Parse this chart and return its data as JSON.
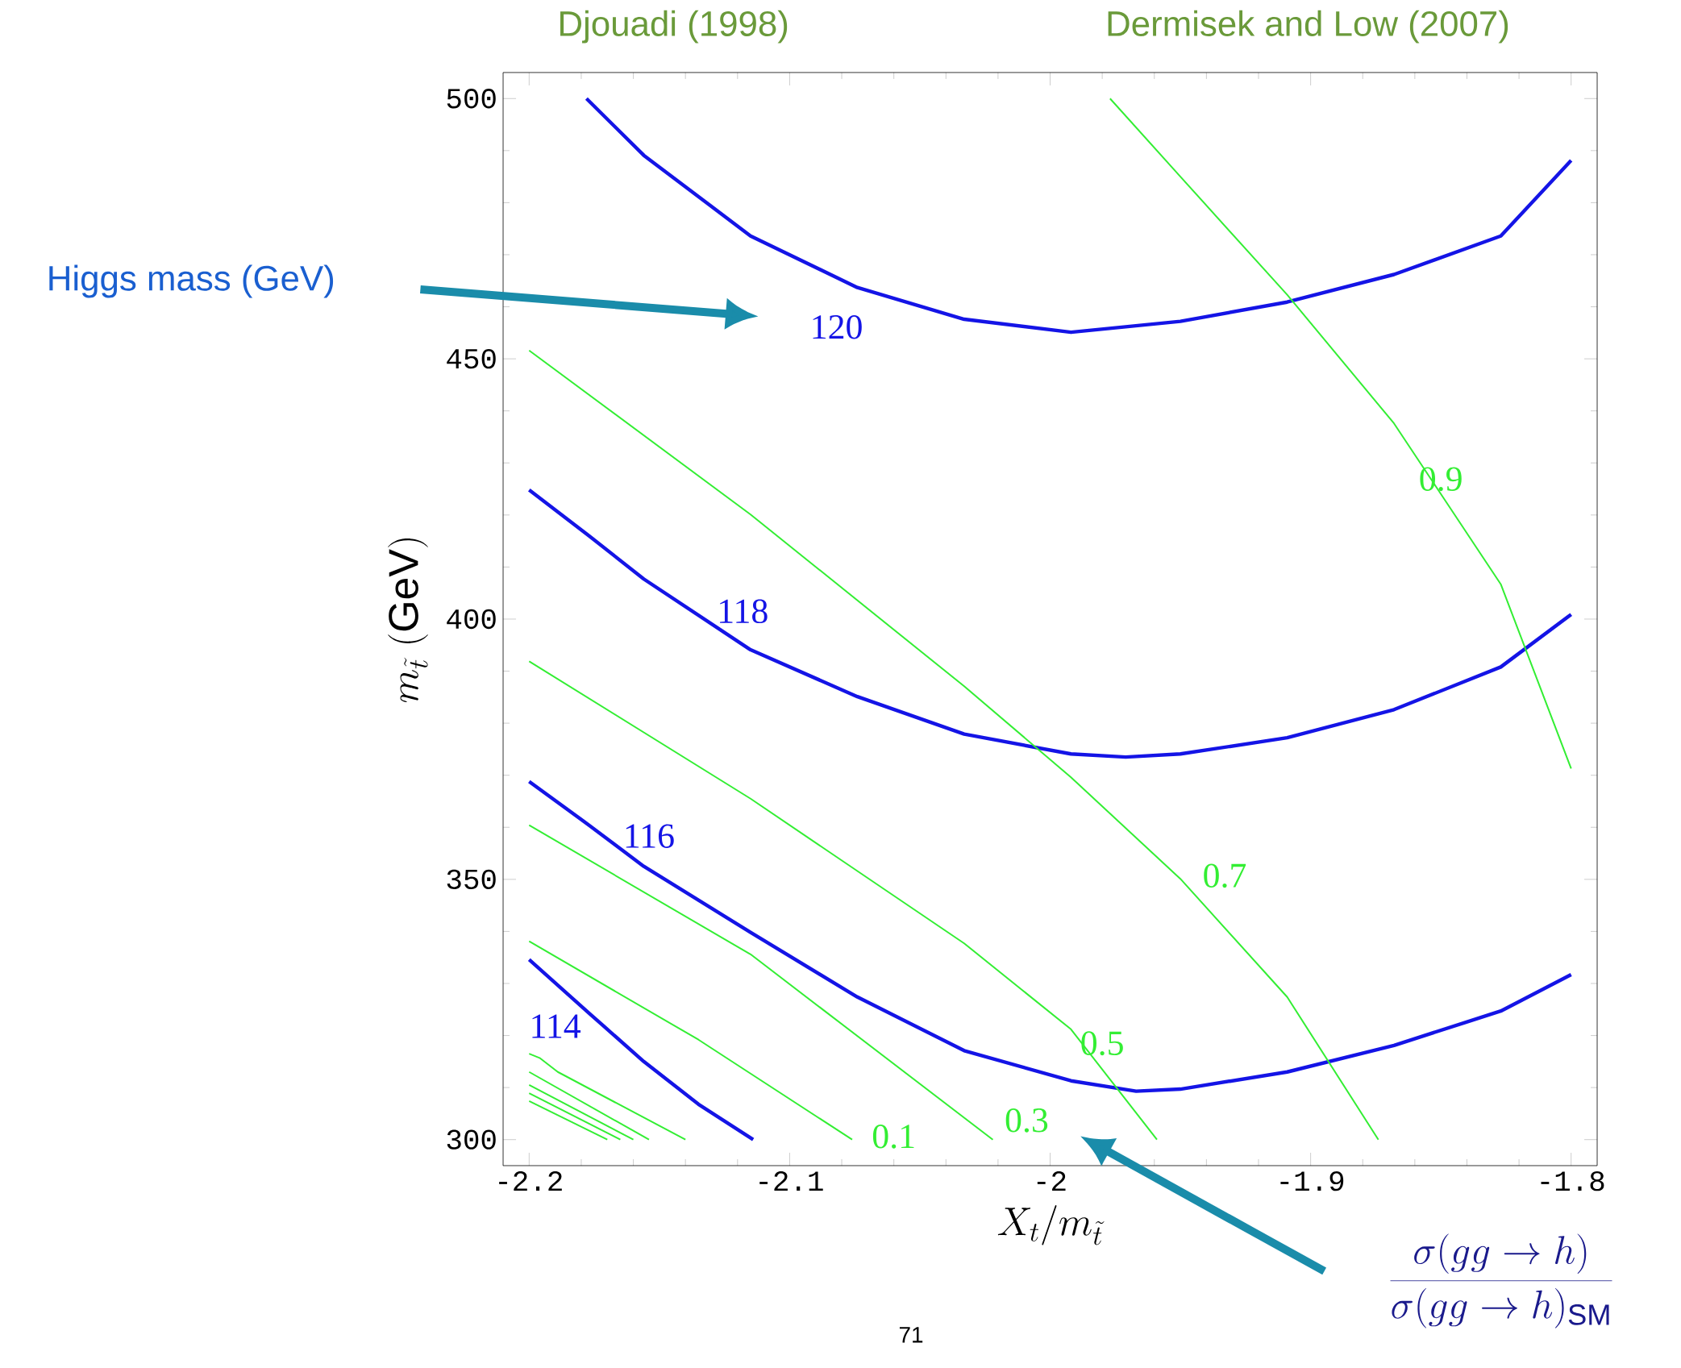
{
  "chart_data": {
    "type": "line",
    "xlabel": "X_t/m_{\\tilde t}",
    "ylabel": "m_{\\tilde t}\\ (\\mathrm{GeV})",
    "annotations": [
      "Djouadi (1998)",
      "Dermisek and Low (2007)",
      "Higgs mass (GeV)",
      "\\frac{\\sigma(gg\\to h)}{\\sigma(gg\\to h)_{\\mathrm{SM}}}",
      "71"
    ],
    "xlim": [
      -2.21,
      -1.79
    ],
    "ylim": [
      295,
      505
    ],
    "xticks": [
      -2.2,
      -2.1,
      -2,
      -1.9,
      -1.8
    ],
    "yticks": [
      300,
      350,
      400,
      450,
      500
    ],
    "grid": false,
    "legend": false,
    "marker": "none",
    "line_style": "solid",
    "series": [
      {
        "name": "120",
        "color": "#1414e6",
        "x": [
          -2.178,
          -2.156,
          -2.115,
          -2.074,
          -2.033,
          -1.992,
          -1.95,
          -1.909,
          -1.868,
          -1.827,
          -1.8
        ],
        "values": [
          500,
          489.1,
          473.6,
          463.7,
          457.6,
          455.1,
          457.2,
          460.9,
          466.2,
          473.6,
          488.1
        ]
      },
      {
        "name": "118",
        "color": "#1414e6",
        "x": [
          -2.2,
          -2.177,
          -2.156,
          -2.115,
          -2.074,
          -2.033,
          -1.992,
          -1.971,
          -1.95,
          -1.909,
          -1.868,
          -1.827,
          -1.8
        ],
        "values": [
          424.8,
          416.0,
          407.7,
          394.1,
          385.1,
          377.9,
          374.1,
          373.5,
          374.1,
          377.2,
          382.6,
          390.8,
          400.9
        ]
      },
      {
        "name": "116",
        "color": "#1414e6",
        "x": [
          -2.2,
          -2.177,
          -2.156,
          -2.115,
          -2.074,
          -2.033,
          -1.992,
          -1.967,
          -1.95,
          -1.909,
          -1.868,
          -1.827,
          -1.8
        ],
        "values": [
          368.8,
          360.4,
          352.5,
          339.8,
          327.4,
          317.1,
          311.3,
          309.3,
          309.7,
          313.0,
          318.1,
          324.7,
          331.7
        ]
      },
      {
        "name": "114",
        "color": "#1414e6",
        "x": [
          -2.2,
          -2.177,
          -2.156,
          -2.135,
          -2.114
        ],
        "values": [
          334.6,
          324.3,
          315.0,
          306.8,
          300
        ]
      },
      {
        "name": "0.9",
        "color": "#33ee33",
        "x": [
          -1.977,
          -1.95,
          -1.909,
          -1.868,
          -1.827,
          -1.8
        ],
        "values": [
          500,
          485.0,
          462.3,
          437.6,
          406.7,
          371.3
        ]
      },
      {
        "name": "0.7",
        "color": "#33ee33",
        "x": [
          -2.2,
          -2.115,
          -2.033,
          -1.992,
          -1.95,
          -1.909,
          -1.874
        ],
        "values": [
          451.6,
          420.1,
          387.1,
          369.6,
          350.1,
          327.4,
          300
        ]
      },
      {
        "name": "0.5",
        "color": "#33ee33",
        "x": [
          -2.2,
          -2.115,
          -2.033,
          -1.992,
          -1.959
        ],
        "values": [
          391.9,
          365.5,
          337.7,
          321.2,
          300
        ]
      },
      {
        "name": "0.3",
        "color": "#33ee33",
        "x": [
          -2.2,
          -2.115,
          -2.022
        ],
        "values": [
          360.4,
          335.6,
          300
        ]
      },
      {
        "name": "0.1",
        "color": "#33ee33",
        "x": [
          -2.2,
          -2.135,
          -2.076
        ],
        "values": [
          338.1,
          319.2,
          300
        ]
      },
      {
        "color": "#33ee33",
        "x": [
          -2.2,
          -2.196,
          -2.189,
          -2.14
        ],
        "values": [
          316.5,
          315.7,
          313.0,
          300
        ]
      },
      {
        "color": "#33ee33",
        "x": [
          -2.2,
          -2.154
        ],
        "values": [
          313.0,
          300
        ]
      },
      {
        "color": "#33ee33",
        "x": [
          -2.2,
          -2.16
        ],
        "values": [
          310.5,
          300
        ]
      },
      {
        "color": "#33ee33",
        "x": [
          -2.2,
          -2.165
        ],
        "values": [
          308.9,
          300
        ]
      },
      {
        "color": "#33ee33",
        "x": [
          -2.2,
          -2.17
        ],
        "values": [
          307.4,
          300
        ]
      }
    ]
  }
}
